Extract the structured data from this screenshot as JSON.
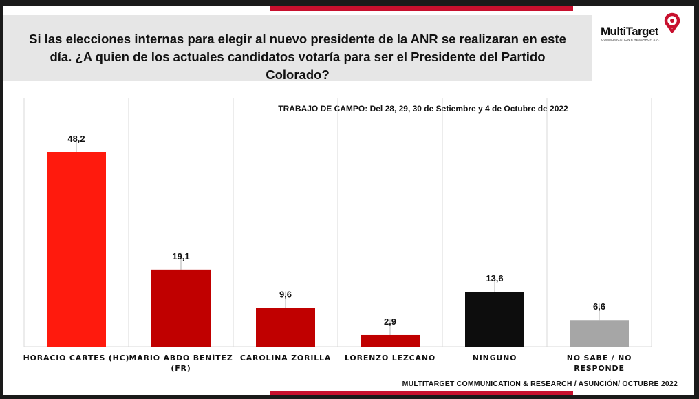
{
  "title": "Si las elecciones internas para elegir al nuevo presidente de la ANR se realizaran en este día. ¿A  quien de los actuales candidatos votaría para ser el Presidente del Partido Colorado?",
  "logo": {
    "name": "MultiTarget",
    "tagline": "COMMUNICATION & RESEARCH S.A."
  },
  "fieldwork": "TRABAJO DE CAMPO: Del 28, 29, 30  de Setiembre y 4  de Octubre  de  2022",
  "footer": "MULTITARGET COMMUNICATION & RESEARCH / ASUNCIÓN/ OCTUBRE  2022",
  "colors": {
    "accent": "#c8102e",
    "bar_primary": "#ff1a0d",
    "bar_red": "#c00000",
    "bar_black": "#0d0d0d",
    "bar_gray": "#a6a6a6",
    "error": "#bfbfbf"
  },
  "chart_data": {
    "type": "bar",
    "title": "",
    "xlabel": "",
    "ylabel": "",
    "ylim": [
      0,
      55
    ],
    "grid": "vertical separators",
    "error_bars": true,
    "categories": [
      [
        "HORACIO CARTES (HC)"
      ],
      [
        "MARIO ABDO BENÍTEZ",
        "(FR)"
      ],
      [
        "CAROLINA ZORILLA"
      ],
      [
        "LORENZO LEZCANO"
      ],
      [
        "NINGUNO"
      ],
      [
        "NO SABE / NO",
        "RESPONDE"
      ]
    ],
    "values": [
      48.2,
      19.1,
      9.6,
      2.9,
      13.6,
      6.6
    ],
    "value_labels": [
      "48,2",
      "19,1",
      "9,6",
      "2,9",
      "13,6",
      "6,6"
    ],
    "bar_colors": [
      "#ff1a0d",
      "#c00000",
      "#c00000",
      "#c00000",
      "#0d0d0d",
      "#a6a6a6"
    ]
  }
}
